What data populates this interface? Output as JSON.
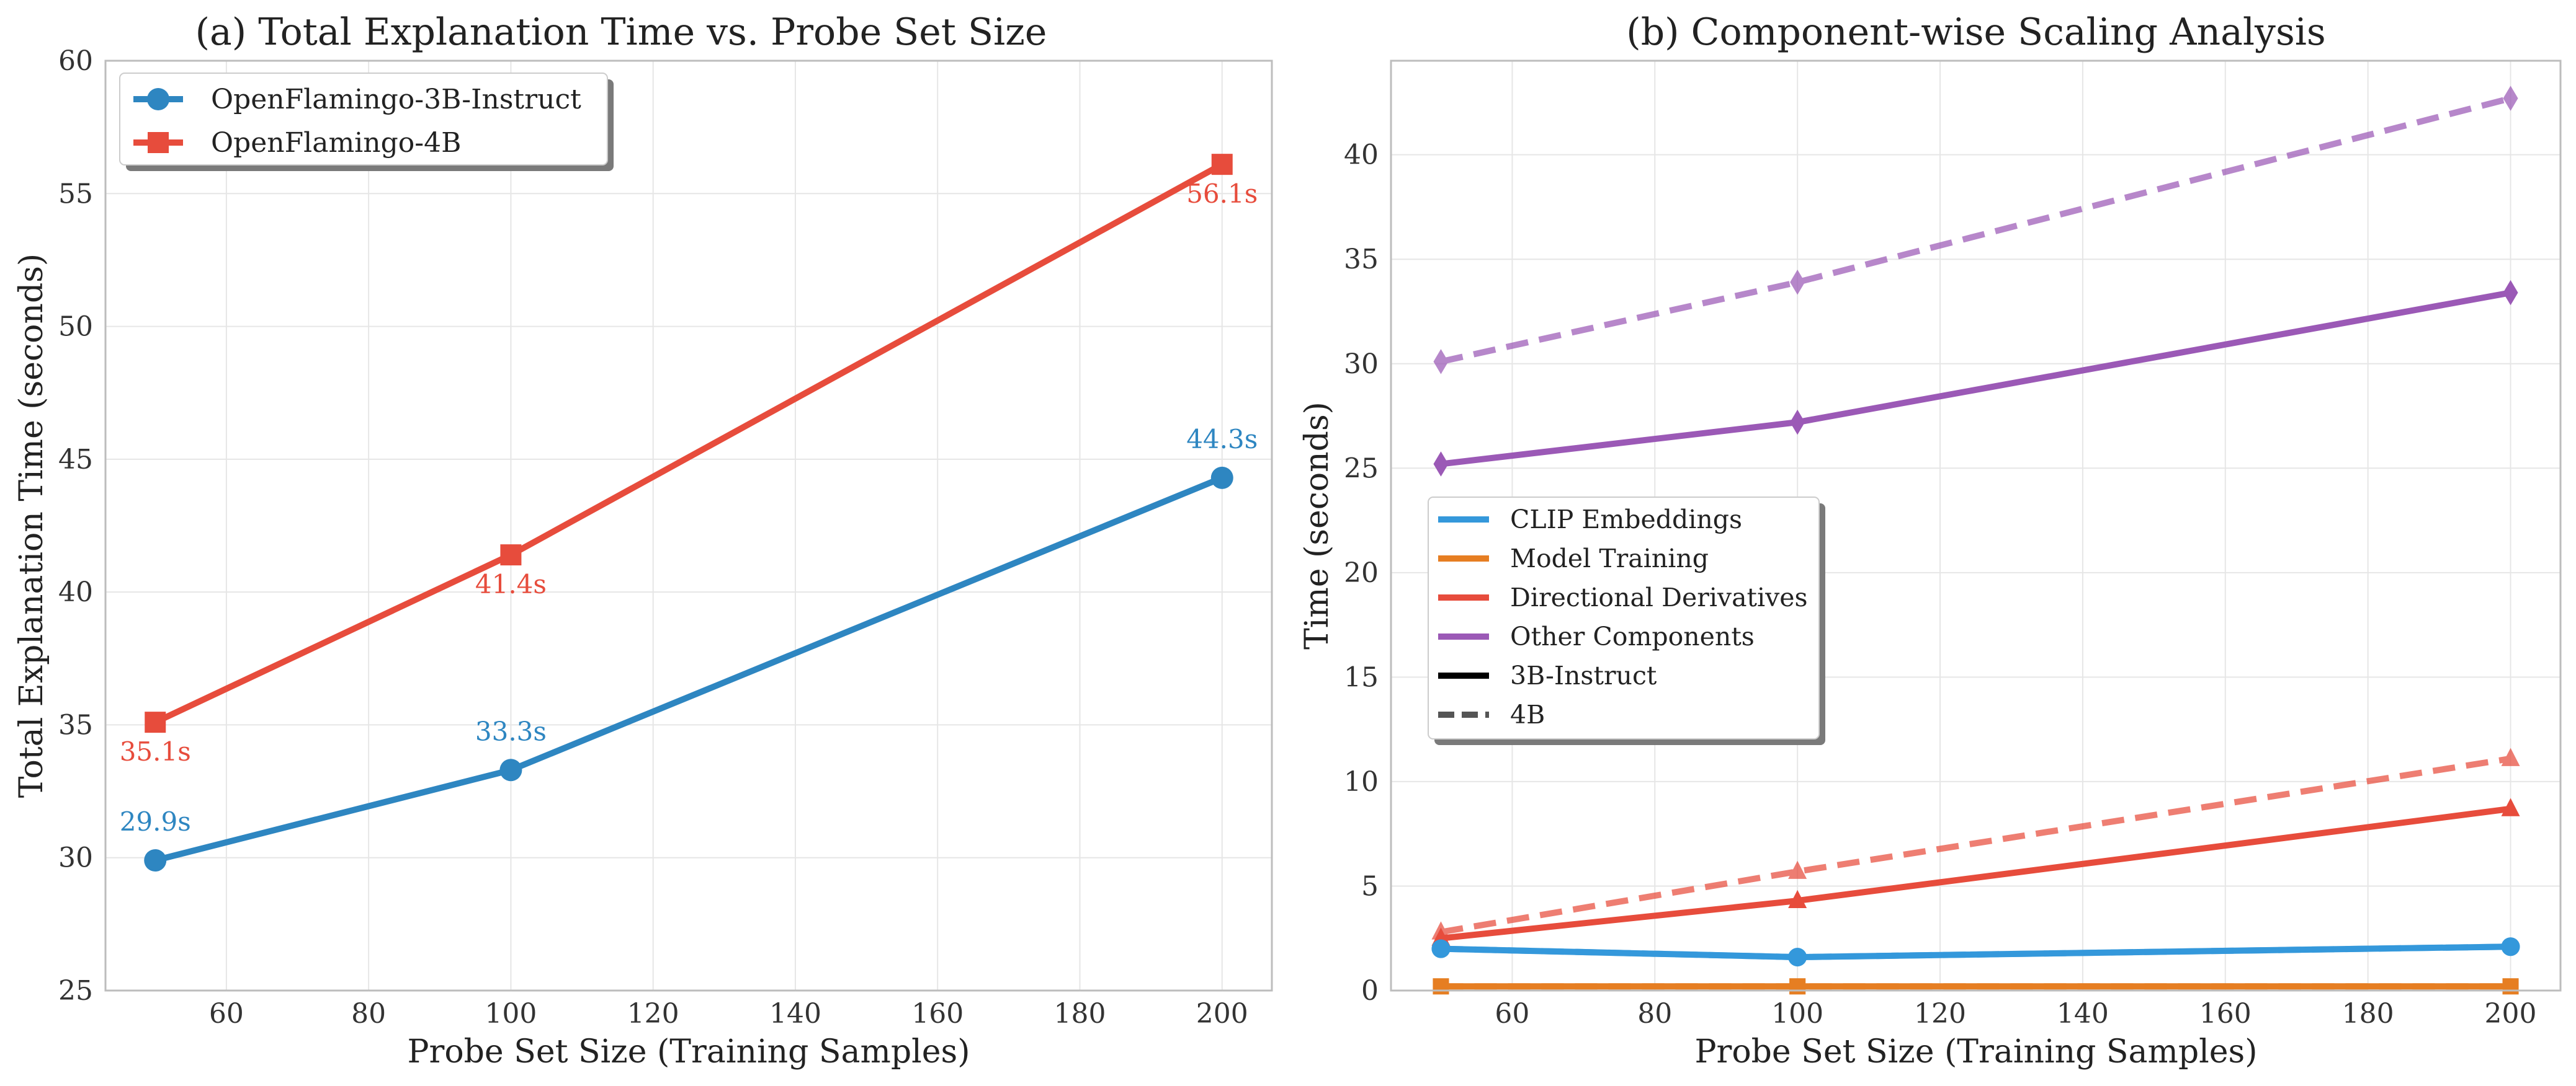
{
  "chart_data": [
    {
      "type": "line",
      "title": "(a) Total Explanation Time vs. Probe Set Size",
      "xlabel": "Probe Set Size (Training Samples)",
      "ylabel": "Total Explanation Time (seconds)",
      "xlim": [
        43,
        207
      ],
      "ylim": [
        25,
        60
      ],
      "x_ticks": [
        60,
        80,
        100,
        120,
        140,
        160,
        180,
        200
      ],
      "y_ticks": [
        25,
        30,
        35,
        40,
        45,
        50,
        55,
        60
      ],
      "grid": true,
      "legend_position": "top-left",
      "x": [
        50,
        100,
        200
      ],
      "series": [
        {
          "name": "OpenFlamingo-3B-Instruct",
          "values": [
            29.9,
            33.3,
            44.3
          ],
          "labels": [
            "29.9s",
            "33.3s",
            "44.3s"
          ],
          "label_side": "above",
          "color": "#2e86c1",
          "marker": "circle"
        },
        {
          "name": "OpenFlamingo-4B",
          "values": [
            35.1,
            41.4,
            56.1
          ],
          "labels": [
            "35.1s",
            "41.4s",
            "56.1s"
          ],
          "label_side": "below",
          "color": "#e74c3c",
          "marker": "square"
        }
      ]
    },
    {
      "type": "line",
      "title": "(b) Component-wise Scaling Analysis",
      "xlabel": "Probe Set Size (Training Samples)",
      "ylabel": "Time (seconds)",
      "xlim": [
        43,
        207
      ],
      "ylim": [
        0,
        44.5
      ],
      "x_ticks": [
        60,
        80,
        100,
        120,
        140,
        160,
        180,
        200
      ],
      "y_ticks": [
        0,
        5,
        10,
        15,
        20,
        25,
        30,
        35,
        40
      ],
      "grid": true,
      "legend_position": "center-left",
      "x": [
        50,
        100,
        200
      ],
      "legend": [
        {
          "name": "CLIP Embeddings",
          "color": "#3498db",
          "style": "solid"
        },
        {
          "name": "Model Training",
          "color": "#e67e22",
          "style": "solid"
        },
        {
          "name": "Directional Derivatives",
          "color": "#e74c3c",
          "style": "solid"
        },
        {
          "name": "Other Components",
          "color": "#9b59b6",
          "style": "solid"
        },
        {
          "name": "3B-Instruct",
          "color": "#000000",
          "style": "solid"
        },
        {
          "name": "4B",
          "color": "#555555",
          "style": "dashed"
        }
      ],
      "series": [
        {
          "name": "Other Components (4B)",
          "values": [
            30.1,
            33.9,
            42.7
          ],
          "color": "#9b59b6",
          "dashed": true,
          "marker": "diamond"
        },
        {
          "name": "Other Components (3B-Instruct)",
          "values": [
            25.2,
            27.2,
            33.4
          ],
          "color": "#9b59b6",
          "dashed": false,
          "marker": "diamond"
        },
        {
          "name": "Directional Derivatives (4B)",
          "values": [
            2.8,
            5.7,
            11.1
          ],
          "color": "#e74c3c",
          "dashed": true,
          "marker": "triangle"
        },
        {
          "name": "Directional Derivatives (3B-Instruct)",
          "values": [
            2.5,
            4.3,
            8.7
          ],
          "color": "#e74c3c",
          "dashed": false,
          "marker": "triangle"
        },
        {
          "name": "CLIP Embeddings (4B)",
          "values": [
            2.0,
            1.6,
            2.1
          ],
          "color": "#3498db",
          "dashed": true,
          "marker": "circle"
        },
        {
          "name": "CLIP Embeddings (3B-Instruct)",
          "values": [
            2.0,
            1.6,
            2.1
          ],
          "color": "#3498db",
          "dashed": false,
          "marker": "circle"
        },
        {
          "name": "Model Training (4B)",
          "values": [
            0.2,
            0.2,
            0.2
          ],
          "color": "#e67e22",
          "dashed": true,
          "marker": "square"
        },
        {
          "name": "Model Training (3B-Instruct)",
          "values": [
            0.2,
            0.2,
            0.2
          ],
          "color": "#e67e22",
          "dashed": false,
          "marker": "square"
        }
      ]
    }
  ]
}
